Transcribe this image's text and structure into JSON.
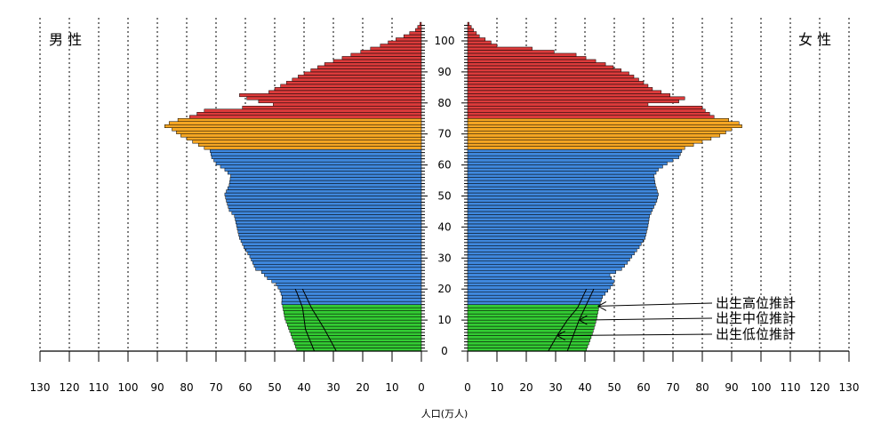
{
  "chart_data": {
    "type": "bar",
    "subtype": "population-pyramid",
    "sex_labels": {
      "male": "男 性",
      "female": "女 性"
    },
    "xlabel": "人口(万人)",
    "x_ticks": [
      0,
      10,
      20,
      30,
      40,
      50,
      60,
      70,
      80,
      90,
      100,
      110,
      120,
      130
    ],
    "age_ticks": [
      0,
      10,
      20,
      30,
      40,
      50,
      60,
      70,
      80,
      90,
      100
    ],
    "xlim": [
      0,
      130
    ],
    "age_range": [
      0,
      105
    ],
    "grid": "vertical dotted at every 10",
    "age_bands": [
      {
        "from": 0,
        "to": 14,
        "color": "#33cc33"
      },
      {
        "from": 15,
        "to": 64,
        "color": "#3f88de"
      },
      {
        "from": 65,
        "to": 74,
        "color": "#f5a623"
      },
      {
        "from": 75,
        "to": 105,
        "color": "#dc3b3b"
      }
    ],
    "male_keypoints": [
      [
        0,
        42.5
      ],
      [
        5,
        44.5
      ],
      [
        10,
        46.5
      ],
      [
        14,
        47.3
      ],
      [
        15,
        47.6
      ],
      [
        17,
        47.5
      ],
      [
        19,
        48.2
      ],
      [
        21,
        49.5
      ],
      [
        22,
        51
      ],
      [
        23,
        52.5
      ],
      [
        24,
        53.5
      ],
      [
        25,
        54.5
      ],
      [
        26,
        56.5
      ],
      [
        28,
        57.5
      ],
      [
        30,
        58.5
      ],
      [
        33,
        60.5
      ],
      [
        36,
        62
      ],
      [
        40,
        63
      ],
      [
        43,
        63.7
      ],
      [
        45,
        65.5
      ],
      [
        48,
        66.5
      ],
      [
        50,
        67
      ],
      [
        53,
        65.5
      ],
      [
        56,
        65
      ],
      [
        58,
        67
      ],
      [
        60,
        70
      ],
      [
        62,
        71.5
      ],
      [
        64,
        72
      ],
      [
        65,
        74
      ],
      [
        67,
        78
      ],
      [
        69,
        82
      ],
      [
        71,
        85
      ],
      [
        72,
        87.5
      ],
      [
        73,
        86
      ],
      [
        74,
        83
      ],
      [
        75,
        79
      ],
      [
        77,
        74
      ],
      [
        78,
        61
      ],
      [
        79,
        50.5
      ],
      [
        80,
        55.5
      ],
      [
        81,
        59.5
      ],
      [
        82,
        62
      ],
      [
        83,
        52
      ],
      [
        86,
        46
      ],
      [
        89,
        40
      ],
      [
        92,
        33
      ],
      [
        95,
        24
      ],
      [
        98,
        14
      ],
      [
        101,
        6
      ],
      [
        103,
        2
      ],
      [
        105,
        0.5
      ]
    ],
    "female_keypoints": [
      [
        0,
        40.5
      ],
      [
        5,
        42.5
      ],
      [
        10,
        44
      ],
      [
        14,
        44.8
      ],
      [
        15,
        45.2
      ],
      [
        17,
        46
      ],
      [
        19,
        47.8
      ],
      [
        21,
        49.5
      ],
      [
        22,
        50
      ],
      [
        23,
        49
      ],
      [
        24,
        48.5
      ],
      [
        25,
        50.5
      ],
      [
        26,
        52.5
      ],
      [
        28,
        54.5
      ],
      [
        30,
        56
      ],
      [
        33,
        58.5
      ],
      [
        36,
        60.5
      ],
      [
        40,
        61.5
      ],
      [
        43,
        62
      ],
      [
        45,
        63
      ],
      [
        48,
        64.5
      ],
      [
        50,
        65
      ],
      [
        53,
        64
      ],
      [
        56,
        63.5
      ],
      [
        58,
        65
      ],
      [
        60,
        68
      ],
      [
        62,
        72
      ],
      [
        64,
        73
      ],
      [
        65,
        74
      ],
      [
        67,
        80
      ],
      [
        69,
        86
      ],
      [
        71,
        90
      ],
      [
        72,
        93.5
      ],
      [
        73,
        92.5
      ],
      [
        74,
        89
      ],
      [
        75,
        84
      ],
      [
        77,
        81
      ],
      [
        78,
        80
      ],
      [
        79,
        61.5
      ],
      [
        80,
        72
      ],
      [
        81,
        74
      ],
      [
        82,
        69
      ],
      [
        84,
        63
      ],
      [
        86,
        60
      ],
      [
        89,
        55
      ],
      [
        92,
        47
      ],
      [
        95,
        37
      ],
      [
        97,
        22
      ],
      [
        98,
        10
      ],
      [
        101,
        4
      ],
      [
        103,
        2
      ],
      [
        105,
        0.5
      ]
    ],
    "projection_lines": {
      "male": [
        {
          "name": "出生高位推計",
          "points": [
            [
              0,
              36.5
            ],
            [
              7,
              39.5
            ],
            [
              14,
              40.5
            ],
            [
              19,
              42.5
            ],
            [
              20,
              43
            ]
          ]
        },
        {
          "name": "出生低位推計",
          "points": [
            [
              0,
              29
            ],
            [
              7,
              33
            ],
            [
              14,
              37.5
            ],
            [
              19,
              40
            ],
            [
              20,
              40.5
            ]
          ]
        }
      ],
      "female": [
        {
          "name": "出生高位推計",
          "points": [
            [
              0,
              34
            ],
            [
              5,
              36
            ],
            [
              10,
              38
            ],
            [
              14,
              40
            ],
            [
              20,
              43
            ]
          ]
        },
        {
          "name": "出生低位推計",
          "points": [
            [
              0,
              27.5
            ],
            [
              5,
              30.5
            ],
            [
              10,
              34
            ],
            [
              14,
              37.5
            ],
            [
              20,
              40.5
            ]
          ]
        }
      ]
    },
    "annotations": [
      {
        "text": "出生高位推計",
        "age": 14.5,
        "female_value": 44.5
      },
      {
        "text": "出生中位推計",
        "age": 10,
        "female_value": 38
      },
      {
        "text": "出生低位推計",
        "age": 5,
        "female_value": 30.5
      }
    ]
  }
}
